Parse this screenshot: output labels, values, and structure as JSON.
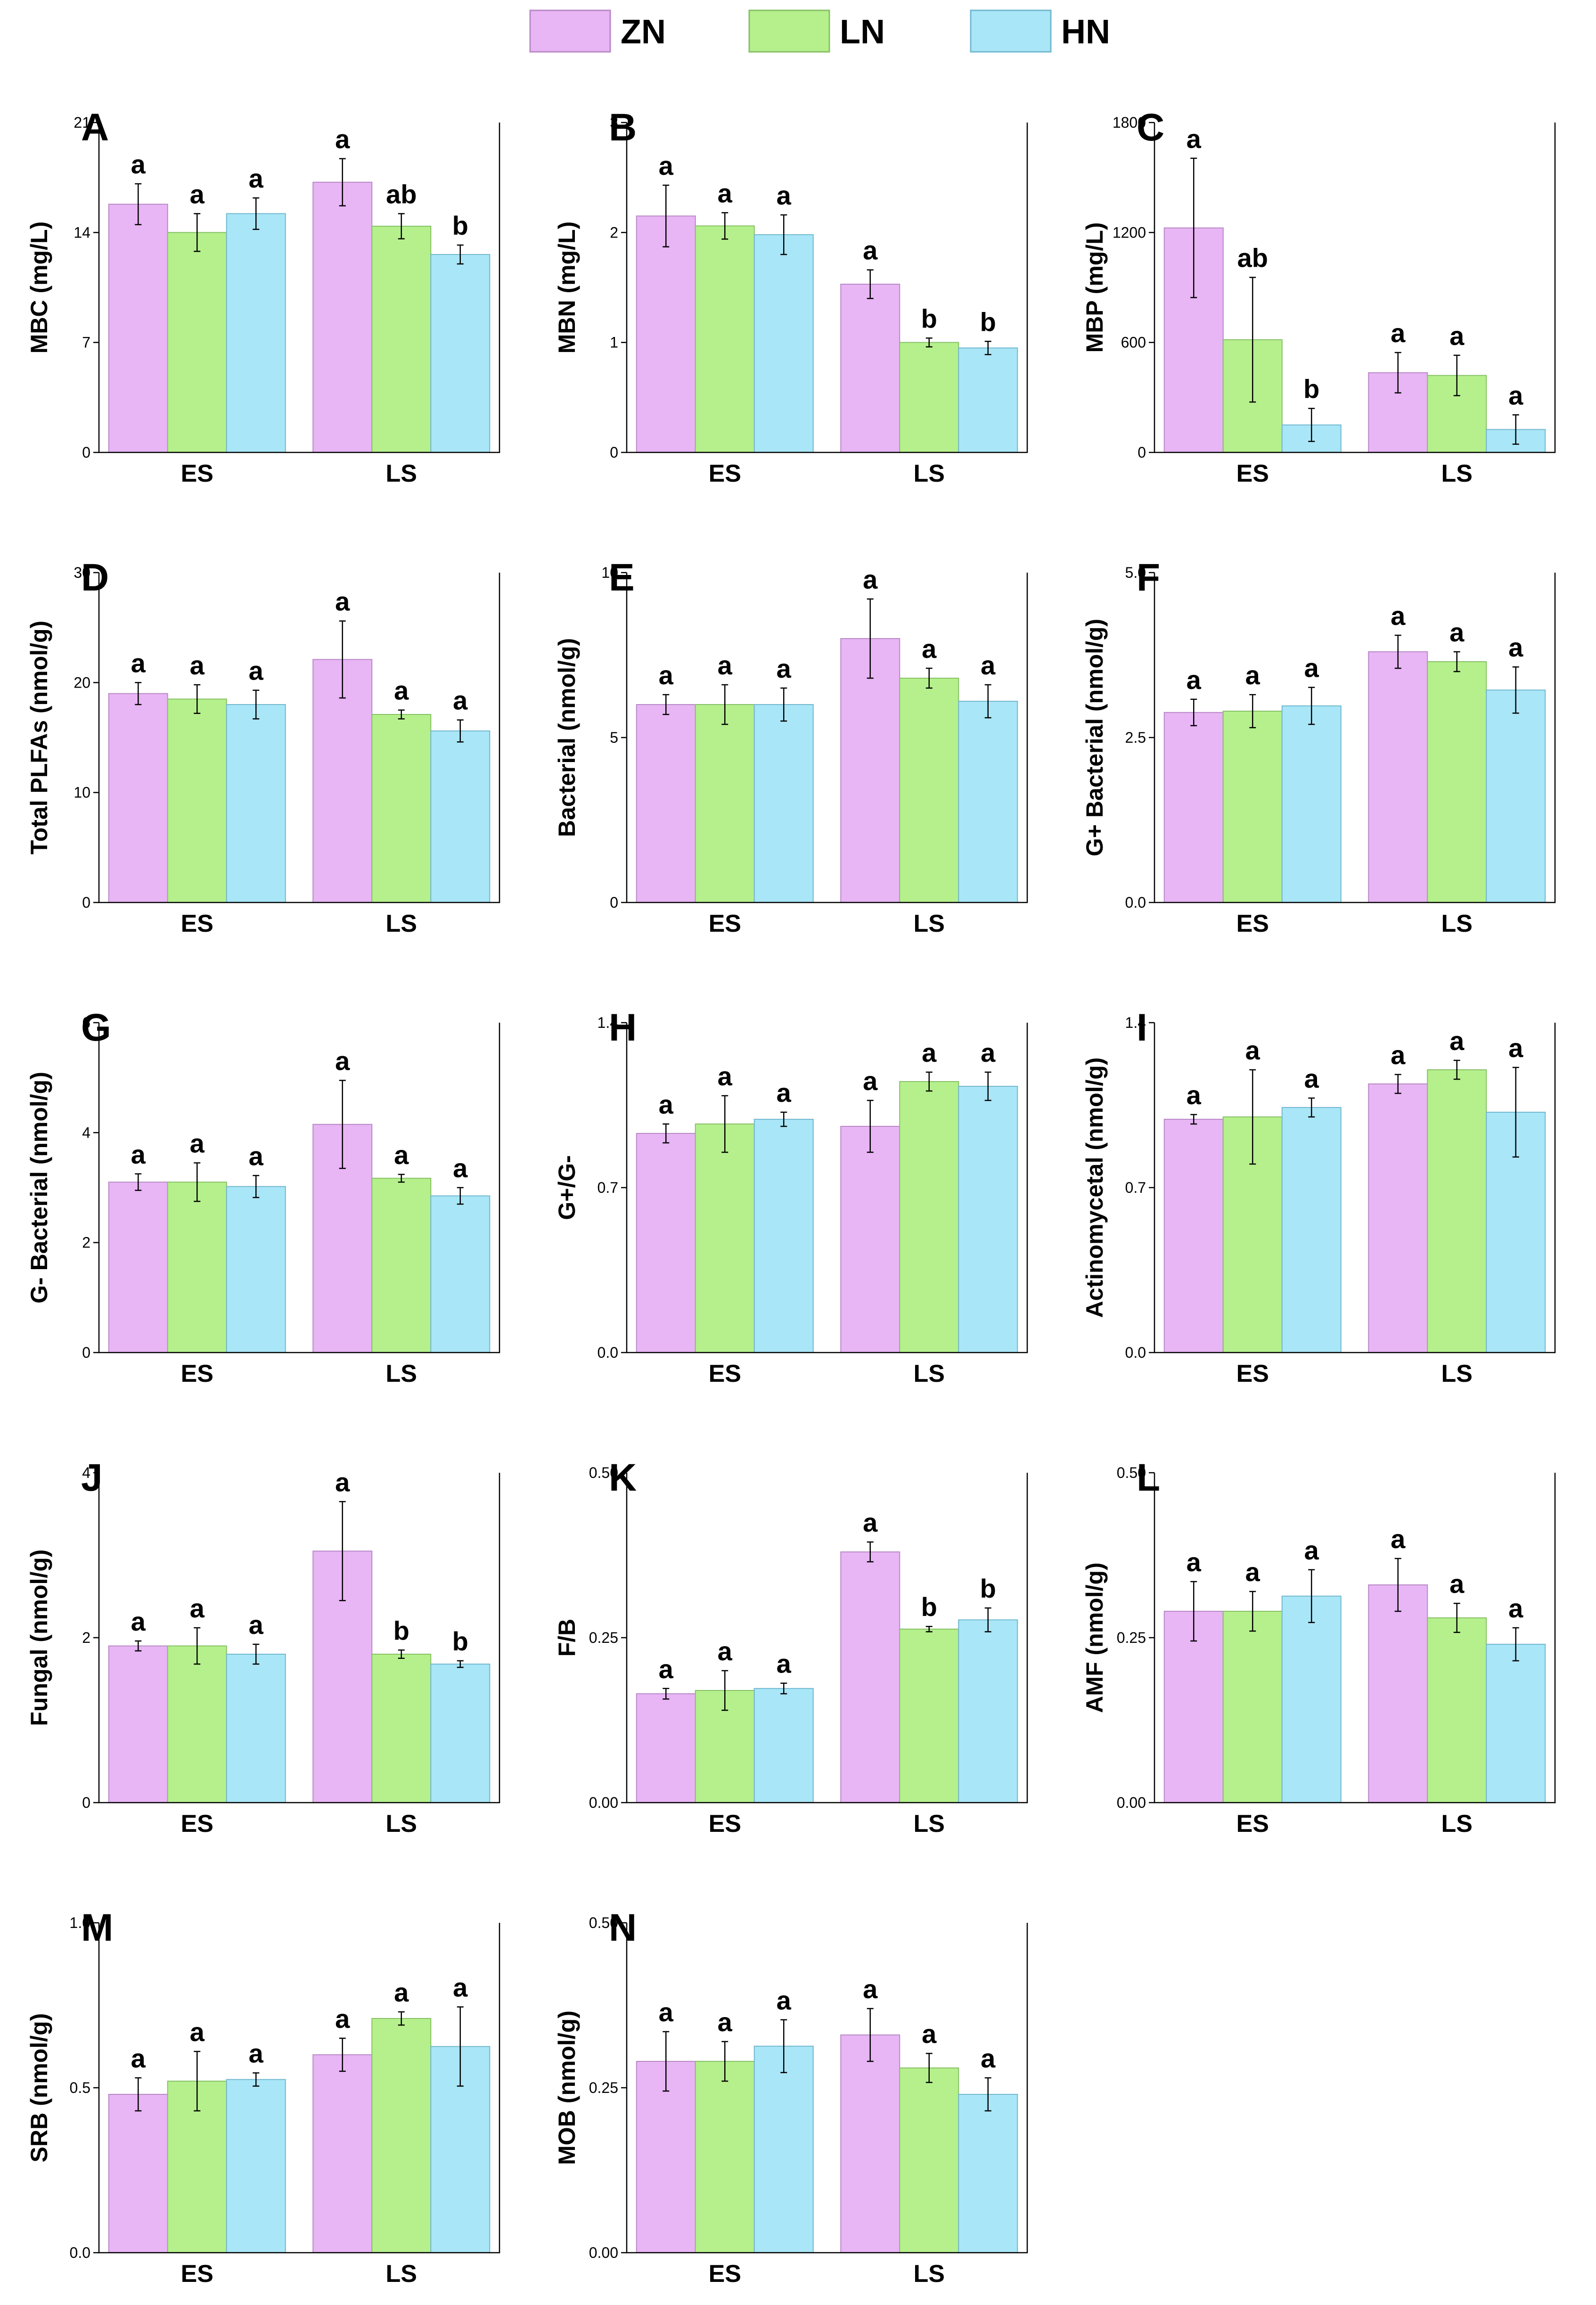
{
  "colors": {
    "ZN": "#e8b5f5",
    "LN": "#b5f08c",
    "HN": "#a9e6f7",
    "ZN_edge": "#b889c6",
    "LN_edge": "#86c065",
    "HN_edge": "#72b8cf"
  },
  "legend": [
    {
      "series": "ZN",
      "label": "ZN"
    },
    {
      "series": "LN",
      "label": "LN"
    },
    {
      "series": "HN",
      "label": "HN"
    }
  ],
  "chart_data": [
    {
      "type": "bar",
      "panel": "A",
      "ylabel": "MBC (mg/L)",
      "ylim": [
        0,
        21
      ],
      "yticks": [
        0,
        7,
        14,
        21
      ],
      "ytick_labels": [
        "0",
        "7",
        "14",
        "21"
      ],
      "categories": [
        "ES",
        "LS"
      ],
      "series": [
        {
          "name": "ZN",
          "values": [
            15.8,
            17.2
          ],
          "errors": [
            1.3,
            1.5
          ],
          "letters": [
            "a",
            "a"
          ]
        },
        {
          "name": "LN",
          "values": [
            14.0,
            14.4
          ],
          "errors": [
            1.2,
            0.8
          ],
          "letters": [
            "a",
            "ab"
          ]
        },
        {
          "name": "HN",
          "values": [
            15.2,
            12.6
          ],
          "errors": [
            1.0,
            0.6
          ],
          "letters": [
            "a",
            "b"
          ]
        }
      ]
    },
    {
      "type": "bar",
      "panel": "B",
      "ylabel": "MBN (mg/L)",
      "ylim": [
        0,
        3
      ],
      "yticks": [
        0,
        1,
        2,
        3
      ],
      "ytick_labels": [
        "0",
        "1",
        "2",
        "3"
      ],
      "categories": [
        "ES",
        "LS"
      ],
      "series": [
        {
          "name": "ZN",
          "values": [
            2.15,
            1.53
          ],
          "errors": [
            0.28,
            0.13
          ],
          "letters": [
            "a",
            "a"
          ]
        },
        {
          "name": "LN",
          "values": [
            2.06,
            1.0
          ],
          "errors": [
            0.12,
            0.04
          ],
          "letters": [
            "a",
            "b"
          ]
        },
        {
          "name": "HN",
          "values": [
            1.98,
            0.95
          ],
          "errors": [
            0.18,
            0.06
          ],
          "letters": [
            "a",
            "b"
          ]
        }
      ]
    },
    {
      "type": "bar",
      "panel": "C",
      "ylabel": "MBP (mg/L)",
      "ylim": [
        0,
        1800
      ],
      "yticks": [
        0,
        600,
        1200,
        1800
      ],
      "ytick_labels": [
        "0",
        "600",
        "1200",
        "1800"
      ],
      "categories": [
        "ES",
        "LS"
      ],
      "series": [
        {
          "name": "ZN",
          "values": [
            1225,
            435
          ],
          "errors": [
            380,
            110
          ],
          "letters": [
            "a",
            "a"
          ]
        },
        {
          "name": "LN",
          "values": [
            615,
            420
          ],
          "errors": [
            340,
            110
          ],
          "letters": [
            "ab",
            "a"
          ]
        },
        {
          "name": "HN",
          "values": [
            150,
            125
          ],
          "errors": [
            90,
            80
          ],
          "letters": [
            "b",
            "a"
          ]
        }
      ]
    },
    {
      "type": "bar",
      "panel": "D",
      "ylabel": "Total PLFAs (nmol/g)",
      "ylim": [
        0,
        30
      ],
      "yticks": [
        0,
        10,
        20,
        30
      ],
      "ytick_labels": [
        "0",
        "10",
        "20",
        "30"
      ],
      "categories": [
        "ES",
        "LS"
      ],
      "series": [
        {
          "name": "ZN",
          "values": [
            19.0,
            22.1
          ],
          "errors": [
            1.0,
            3.5
          ],
          "letters": [
            "a",
            "a"
          ]
        },
        {
          "name": "LN",
          "values": [
            18.5,
            17.1
          ],
          "errors": [
            1.3,
            0.4
          ],
          "letters": [
            "a",
            "a"
          ]
        },
        {
          "name": "HN",
          "values": [
            18.0,
            15.6
          ],
          "errors": [
            1.3,
            1.0
          ],
          "letters": [
            "a",
            "a"
          ]
        }
      ]
    },
    {
      "type": "bar",
      "panel": "E",
      "ylabel": "Bacterial (nmol/g)",
      "ylim": [
        0,
        10
      ],
      "yticks": [
        0,
        5,
        10
      ],
      "ytick_labels": [
        "0",
        "5",
        "10"
      ],
      "categories": [
        "ES",
        "LS"
      ],
      "series": [
        {
          "name": "ZN",
          "values": [
            6.0,
            8.0
          ],
          "errors": [
            0.3,
            1.2
          ],
          "letters": [
            "a",
            "a"
          ]
        },
        {
          "name": "LN",
          "values": [
            6.0,
            6.8
          ],
          "errors": [
            0.6,
            0.3
          ],
          "letters": [
            "a",
            "a"
          ]
        },
        {
          "name": "HN",
          "values": [
            6.0,
            6.1
          ],
          "errors": [
            0.5,
            0.5
          ],
          "letters": [
            "a",
            "a"
          ]
        }
      ]
    },
    {
      "type": "bar",
      "panel": "F",
      "ylabel": "G+ Bacterial (nmol/g)",
      "ylim": [
        0,
        5
      ],
      "yticks": [
        0,
        2.5,
        5
      ],
      "ytick_labels": [
        "0.0",
        "2.5",
        "5.0"
      ],
      "categories": [
        "ES",
        "LS"
      ],
      "series": [
        {
          "name": "ZN",
          "values": [
            2.88,
            3.8
          ],
          "errors": [
            0.2,
            0.25
          ],
          "letters": [
            "a",
            "a"
          ]
        },
        {
          "name": "LN",
          "values": [
            2.9,
            3.65
          ],
          "errors": [
            0.25,
            0.15
          ],
          "letters": [
            "a",
            "a"
          ]
        },
        {
          "name": "HN",
          "values": [
            2.98,
            3.22
          ],
          "errors": [
            0.28,
            0.35
          ],
          "letters": [
            "a",
            "a"
          ]
        }
      ]
    },
    {
      "type": "bar",
      "panel": "G",
      "ylabel": "G- Bacterial (nmol/g)",
      "ylim": [
        0,
        6
      ],
      "yticks": [
        0,
        2,
        4,
        6
      ],
      "ytick_labels": [
        "0",
        "2",
        "4",
        "6"
      ],
      "categories": [
        "ES",
        "LS"
      ],
      "series": [
        {
          "name": "ZN",
          "values": [
            3.1,
            4.15
          ],
          "errors": [
            0.15,
            0.8
          ],
          "letters": [
            "a",
            "a"
          ]
        },
        {
          "name": "LN",
          "values": [
            3.1,
            3.17
          ],
          "errors": [
            0.35,
            0.07
          ],
          "letters": [
            "a",
            "a"
          ]
        },
        {
          "name": "HN",
          "values": [
            3.02,
            2.85
          ],
          "errors": [
            0.2,
            0.15
          ],
          "letters": [
            "a",
            "a"
          ]
        }
      ]
    },
    {
      "type": "bar",
      "panel": "H",
      "ylabel": "G+/G-",
      "ylim": [
        0,
        1.4
      ],
      "yticks": [
        0,
        0.7,
        1.4
      ],
      "ytick_labels": [
        "0.0",
        "0.7",
        "1.4"
      ],
      "categories": [
        "ES",
        "LS"
      ],
      "series": [
        {
          "name": "ZN",
          "values": [
            0.93,
            0.96
          ],
          "errors": [
            0.04,
            0.11
          ],
          "letters": [
            "a",
            "a"
          ]
        },
        {
          "name": "LN",
          "values": [
            0.97,
            1.15
          ],
          "errors": [
            0.12,
            0.04
          ],
          "letters": [
            "a",
            "a"
          ]
        },
        {
          "name": "HN",
          "values": [
            0.99,
            1.13
          ],
          "errors": [
            0.03,
            0.06
          ],
          "letters": [
            "a",
            "a"
          ]
        }
      ]
    },
    {
      "type": "bar",
      "panel": "I",
      "ylabel": "Actinomycetal (nmol/g)",
      "ylim": [
        0,
        1.4
      ],
      "yticks": [
        0,
        0.7,
        1.4
      ],
      "ytick_labels": [
        "0.0",
        "0.7",
        "1.4"
      ],
      "categories": [
        "ES",
        "LS"
      ],
      "series": [
        {
          "name": "ZN",
          "values": [
            0.99,
            1.14
          ],
          "errors": [
            0.02,
            0.04
          ],
          "letters": [
            "a",
            "a"
          ]
        },
        {
          "name": "LN",
          "values": [
            1.0,
            1.2
          ],
          "errors": [
            0.2,
            0.04
          ],
          "letters": [
            "a",
            "a"
          ]
        },
        {
          "name": "HN",
          "values": [
            1.04,
            1.02
          ],
          "errors": [
            0.04,
            0.19
          ],
          "letters": [
            "a",
            "a"
          ]
        }
      ]
    },
    {
      "type": "bar",
      "panel": "J",
      "ylabel": "Fungal (nmol/g)",
      "ylim": [
        0,
        4
      ],
      "yticks": [
        0,
        2,
        4
      ],
      "ytick_labels": [
        "0",
        "2",
        "4"
      ],
      "categories": [
        "ES",
        "LS"
      ],
      "series": [
        {
          "name": "ZN",
          "values": [
            1.9,
            3.05
          ],
          "errors": [
            0.06,
            0.6
          ],
          "letters": [
            "a",
            "a"
          ]
        },
        {
          "name": "LN",
          "values": [
            1.9,
            1.8
          ],
          "errors": [
            0.22,
            0.05
          ],
          "letters": [
            "a",
            "b"
          ]
        },
        {
          "name": "HN",
          "values": [
            1.8,
            1.68
          ],
          "errors": [
            0.12,
            0.04
          ],
          "letters": [
            "a",
            "b"
          ]
        }
      ]
    },
    {
      "type": "bar",
      "panel": "K",
      "ylabel": "F/B",
      "ylim": [
        0,
        0.5
      ],
      "yticks": [
        0,
        0.25,
        0.5
      ],
      "ytick_labels": [
        "0.00",
        "0.25",
        "0.50"
      ],
      "categories": [
        "ES",
        "LS"
      ],
      "series": [
        {
          "name": "ZN",
          "values": [
            0.165,
            0.38
          ],
          "errors": [
            0.008,
            0.015
          ],
          "letters": [
            "a",
            "a"
          ]
        },
        {
          "name": "LN",
          "values": [
            0.17,
            0.263
          ],
          "errors": [
            0.03,
            0.004
          ],
          "letters": [
            "a",
            "b"
          ]
        },
        {
          "name": "HN",
          "values": [
            0.173,
            0.277
          ],
          "errors": [
            0.008,
            0.018
          ],
          "letters": [
            "a",
            "b"
          ]
        }
      ]
    },
    {
      "type": "bar",
      "panel": "L",
      "ylabel": "AMF (nmol/g)",
      "ylim": [
        0,
        0.5
      ],
      "yticks": [
        0,
        0.25,
        0.5
      ],
      "ytick_labels": [
        "0.00",
        "0.25",
        "0.50"
      ],
      "categories": [
        "ES",
        "LS"
      ],
      "series": [
        {
          "name": "ZN",
          "values": [
            0.29,
            0.33
          ],
          "errors": [
            0.045,
            0.04
          ],
          "letters": [
            "a",
            "a"
          ]
        },
        {
          "name": "LN",
          "values": [
            0.29,
            0.28
          ],
          "errors": [
            0.03,
            0.022
          ],
          "letters": [
            "a",
            "a"
          ]
        },
        {
          "name": "HN",
          "values": [
            0.313,
            0.24
          ],
          "errors": [
            0.04,
            0.025
          ],
          "letters": [
            "a",
            "a"
          ]
        }
      ]
    },
    {
      "type": "bar",
      "panel": "M",
      "ylabel": "SRB (nmol/g)",
      "ylim": [
        0,
        1.0
      ],
      "yticks": [
        0,
        0.5,
        1.0
      ],
      "ytick_labels": [
        "0.0",
        "0.5",
        "1.0"
      ],
      "categories": [
        "ES",
        "LS"
      ],
      "series": [
        {
          "name": "ZN",
          "values": [
            0.48,
            0.6
          ],
          "errors": [
            0.05,
            0.05
          ],
          "letters": [
            "a",
            "a"
          ]
        },
        {
          "name": "LN",
          "values": [
            0.52,
            0.71
          ],
          "errors": [
            0.09,
            0.02
          ],
          "letters": [
            "a",
            "a"
          ]
        },
        {
          "name": "HN",
          "values": [
            0.525,
            0.625
          ],
          "errors": [
            0.02,
            0.12
          ],
          "letters": [
            "a",
            "a"
          ]
        }
      ]
    },
    {
      "type": "bar",
      "panel": "N",
      "ylabel": "MOB (nmol/g)",
      "ylim": [
        0,
        0.5
      ],
      "yticks": [
        0,
        0.25,
        0.5
      ],
      "ytick_labels": [
        "0.00",
        "0.25",
        "0.50"
      ],
      "categories": [
        "ES",
        "LS"
      ],
      "series": [
        {
          "name": "ZN",
          "values": [
            0.29,
            0.33
          ],
          "errors": [
            0.045,
            0.04
          ],
          "letters": [
            "a",
            "a"
          ]
        },
        {
          "name": "LN",
          "values": [
            0.29,
            0.28
          ],
          "errors": [
            0.03,
            0.022
          ],
          "letters": [
            "a",
            "a"
          ]
        },
        {
          "name": "HN",
          "values": [
            0.313,
            0.24
          ],
          "errors": [
            0.04,
            0.025
          ],
          "letters": [
            "a",
            "a"
          ]
        }
      ]
    }
  ]
}
